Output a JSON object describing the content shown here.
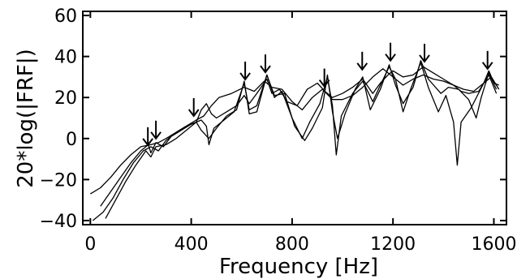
{
  "chart_data": {
    "type": "line",
    "title": "",
    "xlabel": "Frequency [Hz]",
    "ylabel": "20*log(|FRF|)",
    "xlim": [
      -30,
      1650
    ],
    "ylim": [
      -42,
      62
    ],
    "x_ticks": [
      0,
      400,
      800,
      1200,
      1600
    ],
    "x_tick_labels": [
      "0",
      "400",
      "800",
      "1200",
      "1600"
    ],
    "y_ticks": [
      -40,
      -20,
      0,
      20,
      40,
      60
    ],
    "y_tick_labels": [
      "−40",
      "−20",
      "0",
      "20",
      "40",
      "60"
    ],
    "grid": false,
    "legend": "none",
    "series": [
      {
        "color": "#000000",
        "points": [
          [
            0,
            -27
          ],
          [
            40,
            -24
          ],
          [
            80,
            -19
          ],
          [
            120,
            -13
          ],
          [
            160,
            -8
          ],
          [
            200,
            -4
          ],
          [
            240,
            -3
          ],
          [
            270,
            -2
          ],
          [
            300,
            0
          ],
          [
            340,
            3
          ],
          [
            380,
            6
          ],
          [
            420,
            8
          ],
          [
            440,
            14
          ],
          [
            460,
            17
          ],
          [
            480,
            12
          ],
          [
            500,
            10
          ],
          [
            540,
            13
          ],
          [
            580,
            16
          ],
          [
            610,
            21
          ],
          [
            630,
            17
          ],
          [
            660,
            22
          ],
          [
            700,
            29
          ],
          [
            720,
            22
          ],
          [
            750,
            24
          ],
          [
            780,
            18
          ],
          [
            820,
            16
          ],
          [
            860,
            24
          ],
          [
            900,
            27
          ],
          [
            930,
            23
          ],
          [
            960,
            20
          ],
          [
            1000,
            22
          ],
          [
            1040,
            25
          ],
          [
            1080,
            29
          ],
          [
            1120,
            22
          ],
          [
            1150,
            27
          ],
          [
            1180,
            31
          ],
          [
            1200,
            33
          ],
          [
            1240,
            30
          ],
          [
            1280,
            31
          ],
          [
            1320,
            35
          ],
          [
            1360,
            32
          ],
          [
            1400,
            29
          ],
          [
            1440,
            26
          ],
          [
            1480,
            24
          ],
          [
            1520,
            23
          ],
          [
            1560,
            27
          ],
          [
            1580,
            33
          ],
          [
            1600,
            27
          ],
          [
            1620,
            26
          ]
        ]
      },
      {
        "color": "#000000",
        "points": [
          [
            40,
            -33
          ],
          [
            80,
            -26
          ],
          [
            120,
            -19
          ],
          [
            160,
            -12
          ],
          [
            200,
            -6
          ],
          [
            230,
            -3
          ],
          [
            240,
            -7
          ],
          [
            260,
            -2
          ],
          [
            290,
            -4
          ],
          [
            320,
            1
          ],
          [
            360,
            4
          ],
          [
            400,
            7
          ],
          [
            440,
            9
          ],
          [
            460,
            6
          ],
          [
            470,
            -3
          ],
          [
            490,
            5
          ],
          [
            530,
            9
          ],
          [
            570,
            13
          ],
          [
            610,
            27
          ],
          [
            630,
            14
          ],
          [
            660,
            16
          ],
          [
            700,
            31
          ],
          [
            730,
            20
          ],
          [
            760,
            23
          ],
          [
            800,
            10
          ],
          [
            840,
            0
          ],
          [
            870,
            8
          ],
          [
            910,
            17
          ],
          [
            940,
            30
          ],
          [
            960,
            16
          ],
          [
            975,
            -8
          ],
          [
            995,
            11
          ],
          [
            1040,
            22
          ],
          [
            1080,
            28
          ],
          [
            1120,
            18
          ],
          [
            1150,
            26
          ],
          [
            1185,
            35
          ],
          [
            1210,
            29
          ],
          [
            1240,
            13
          ],
          [
            1270,
            24
          ],
          [
            1310,
            37
          ],
          [
            1340,
            25
          ],
          [
            1380,
            13
          ],
          [
            1410,
            21
          ],
          [
            1440,
            8
          ],
          [
            1455,
            -13
          ],
          [
            1470,
            8
          ],
          [
            1510,
            15
          ],
          [
            1560,
            27
          ],
          [
            1590,
            30
          ],
          [
            1620,
            24
          ]
        ]
      },
      {
        "color": "#000000",
        "points": [
          [
            60,
            -39
          ],
          [
            100,
            -30
          ],
          [
            140,
            -21
          ],
          [
            180,
            -13
          ],
          [
            220,
            -6
          ],
          [
            240,
            -9
          ],
          [
            260,
            -4
          ],
          [
            300,
            -3
          ],
          [
            340,
            0
          ],
          [
            380,
            4
          ],
          [
            420,
            8
          ],
          [
            440,
            4
          ],
          [
            470,
            0
          ],
          [
            500,
            5
          ],
          [
            540,
            11
          ],
          [
            580,
            14
          ],
          [
            610,
            28
          ],
          [
            630,
            12
          ],
          [
            660,
            13
          ],
          [
            700,
            31
          ],
          [
            730,
            21
          ],
          [
            770,
            22
          ],
          [
            810,
            6
          ],
          [
            850,
            -1
          ],
          [
            880,
            5
          ],
          [
            920,
            15
          ],
          [
            940,
            31
          ],
          [
            960,
            13
          ],
          [
            980,
            0
          ],
          [
            1010,
            12
          ],
          [
            1050,
            24
          ],
          [
            1080,
            30
          ],
          [
            1110,
            14
          ],
          [
            1150,
            24
          ],
          [
            1185,
            36
          ],
          [
            1210,
            26
          ],
          [
            1240,
            17
          ],
          [
            1280,
            25
          ],
          [
            1310,
            38
          ],
          [
            1340,
            29
          ],
          [
            1390,
            22
          ],
          [
            1420,
            25
          ],
          [
            1460,
            24
          ],
          [
            1500,
            19
          ],
          [
            1530,
            10
          ],
          [
            1550,
            20
          ],
          [
            1580,
            32
          ],
          [
            1610,
            24
          ]
        ]
      },
      {
        "color": "#000000",
        "points": [
          [
            10,
            -40
          ],
          [
            50,
            -36
          ],
          [
            90,
            -29
          ],
          [
            130,
            -20
          ],
          [
            170,
            -12
          ],
          [
            210,
            -6
          ],
          [
            240,
            -4
          ],
          [
            270,
            -6
          ],
          [
            300,
            -1
          ],
          [
            340,
            3
          ],
          [
            380,
            6
          ],
          [
            420,
            9
          ],
          [
            450,
            11
          ],
          [
            480,
            16
          ],
          [
            510,
            20
          ],
          [
            560,
            22
          ],
          [
            610,
            25
          ],
          [
            650,
            23
          ],
          [
            690,
            28
          ],
          [
            720,
            25
          ],
          [
            760,
            24
          ],
          [
            800,
            18
          ],
          [
            840,
            14
          ],
          [
            880,
            20
          ],
          [
            920,
            24
          ],
          [
            960,
            19
          ],
          [
            1000,
            19
          ],
          [
            1040,
            21
          ],
          [
            1080,
            25
          ],
          [
            1120,
            30
          ],
          [
            1160,
            34
          ],
          [
            1200,
            30
          ],
          [
            1240,
            26
          ],
          [
            1280,
            29
          ],
          [
            1320,
            31
          ],
          [
            1360,
            29
          ],
          [
            1400,
            28
          ],
          [
            1440,
            26
          ],
          [
            1470,
            23
          ],
          [
            1500,
            22
          ],
          [
            1540,
            23
          ],
          [
            1580,
            31
          ],
          [
            1610,
            22
          ]
        ]
      }
    ],
    "arrow_markers_x": [
      228,
      260,
      410,
      614,
      694,
      928,
      1078,
      1190,
      1325,
      1575
    ]
  }
}
